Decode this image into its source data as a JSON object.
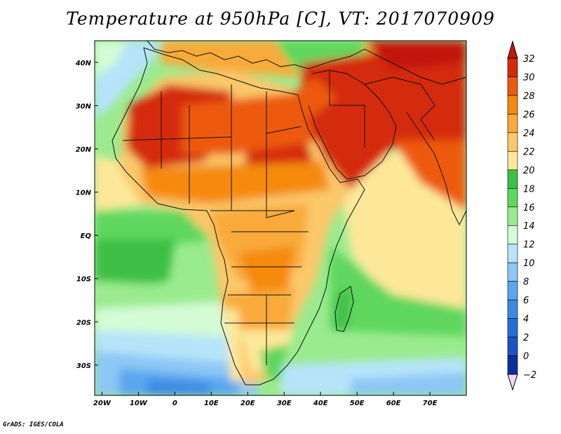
{
  "title": "Temperature at 950hPa [C], VT: 2017070909",
  "credit": "GrADS: IGES/COLA",
  "map": {
    "lon_range": [
      -22,
      80
    ],
    "lat_range": [
      -37,
      45
    ],
    "lat_ticks": [
      {
        "value": 40,
        "label": "40N"
      },
      {
        "value": 30,
        "label": "30N"
      },
      {
        "value": 20,
        "label": "20N"
      },
      {
        "value": 10,
        "label": "10N"
      },
      {
        "value": 0,
        "label": "EQ"
      },
      {
        "value": -10,
        "label": "10S"
      },
      {
        "value": -20,
        "label": "20S"
      },
      {
        "value": -30,
        "label": "30S"
      }
    ],
    "lon_ticks": [
      {
        "value": -20,
        "label": "20W"
      },
      {
        "value": -10,
        "label": "10W"
      },
      {
        "value": 0,
        "label": "0"
      },
      {
        "value": 10,
        "label": "10E"
      },
      {
        "value": 20,
        "label": "20E"
      },
      {
        "value": 30,
        "label": "30E"
      },
      {
        "value": 40,
        "label": "40E"
      },
      {
        "value": 50,
        "label": "50E"
      },
      {
        "value": 60,
        "label": "60E"
      },
      {
        "value": 70,
        "label": "70E"
      }
    ]
  },
  "colorbar": {
    "levels": [
      "32",
      "30",
      "28",
      "26",
      "24",
      "22",
      "20",
      "18",
      "16",
      "14",
      "12",
      "10",
      "8",
      "6",
      "4",
      "2",
      "0",
      "−2"
    ],
    "colors": [
      "#d42a0a",
      "#ee5a0c",
      "#f58a10",
      "#f9aa3a",
      "#fbc86a",
      "#fde89a",
      "#3cbf44",
      "#5fd75e",
      "#9aeb8e",
      "#d4fcd6",
      "#b6e4f9",
      "#8cc7f5",
      "#5aa6ef",
      "#3c8ae6",
      "#256ed7",
      "#1a54c4",
      "#0d2f9a"
    ],
    "top_color": "#c21808",
    "bottom_color": "#e6dcf8"
  }
}
